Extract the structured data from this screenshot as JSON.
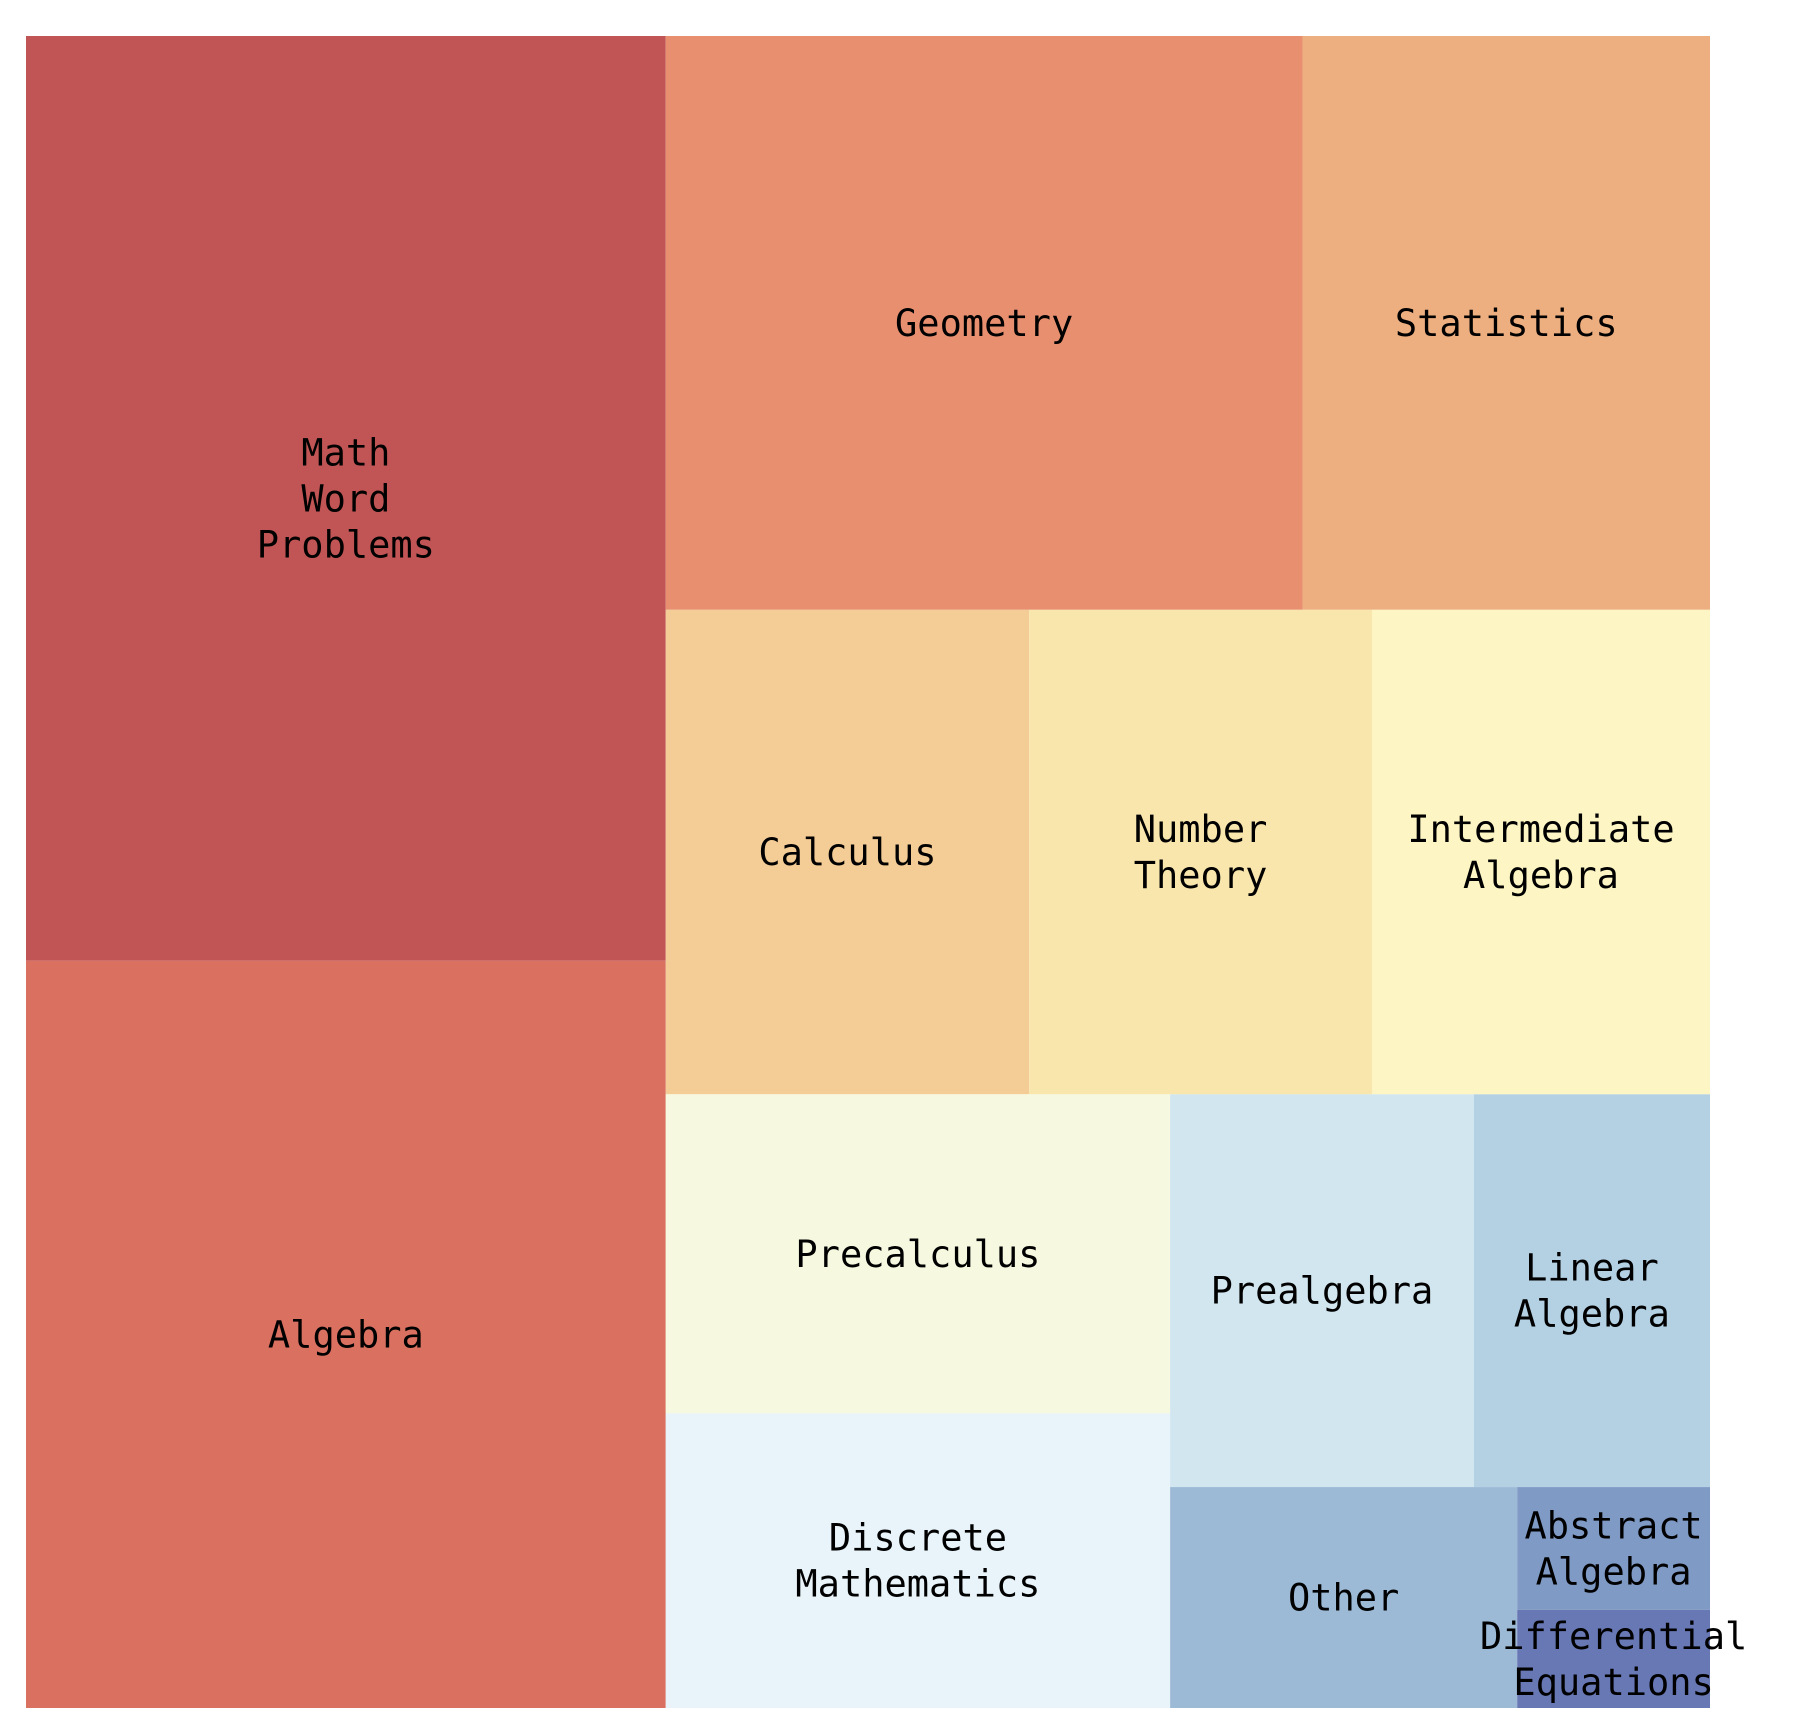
{
  "chart_data": {
    "type": "treemap",
    "title": "",
    "categories": [
      "Math Word Problems",
      "Algebra",
      "Geometry",
      "Statistics",
      "Calculus",
      "Number Theory",
      "Intermediate Algebra",
      "Precalculus",
      "Discrete Mathematics",
      "Prealgebra",
      "Linear Algebra",
      "Other",
      "Abstract Algebra",
      "Differential Equations"
    ],
    "values": [
      1250,
      1010,
      772,
      494,
      372,
      351,
      346,
      340,
      314,
      252,
      196,
      162,
      50,
      40
    ],
    "labels": [
      [
        "Math",
        "Word",
        "Problems"
      ],
      [
        "Algebra"
      ],
      [
        "Geometry"
      ],
      [
        "Statistics"
      ],
      [
        "Calculus"
      ],
      [
        "Number",
        "Theory"
      ],
      [
        "Intermediate",
        "Algebra"
      ],
      [
        "Precalculus"
      ],
      [
        "Discrete",
        "Mathematics"
      ],
      [
        "Prealgebra"
      ],
      [
        "Linear",
        "Algebra"
      ],
      [
        "Other"
      ],
      [
        "Abstract",
        "Algebra"
      ],
      [
        "Differential",
        "Equations"
      ]
    ],
    "colors": [
      "#c15555",
      "#d97060",
      "#e88f70",
      "#eeaf80",
      "#f4cd96",
      "#f9e6ad",
      "#fdf6c4",
      "#f6f9df",
      "#e8f4f9",
      "#d1e6ef",
      "#b4d1e4",
      "#9cbad6",
      "#7f9ac5",
      "#6878b4"
    ],
    "grid": false,
    "legend": "none"
  }
}
